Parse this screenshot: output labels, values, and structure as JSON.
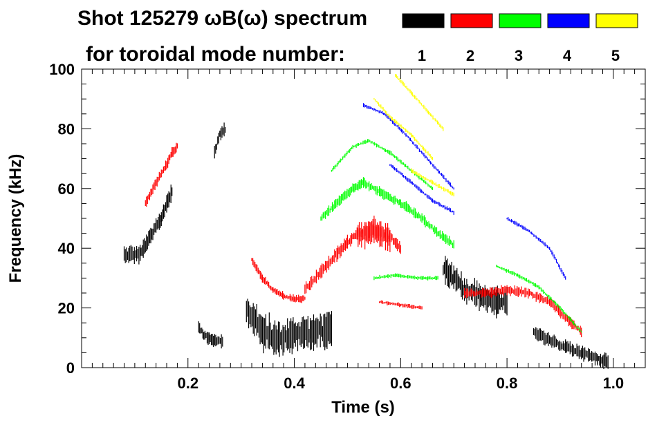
{
  "chart_data": {
    "type": "scatter",
    "title_line1": "Shot 125279 ωB(ω) spectrum",
    "title_line2": "for toroidal mode number:",
    "xlabel": "Time (s)",
    "ylabel": "Frequency (kHz)",
    "xlim": [
      0.0,
      1.06
    ],
    "ylim": [
      0,
      100
    ],
    "x_ticks": [
      0.2,
      0.4,
      0.6,
      0.8,
      1.0
    ],
    "x_tick_labels": [
      "0.2",
      "0.4",
      "0.6",
      "0.8",
      "1.0"
    ],
    "y_ticks": [
      0,
      20,
      40,
      60,
      80,
      100
    ],
    "y_tick_labels": [
      "0",
      "20",
      "40",
      "60",
      "80",
      "100"
    ],
    "legend": [
      {
        "label": "1",
        "color": "#000000"
      },
      {
        "label": "2",
        "color": "#ff0000"
      },
      {
        "label": "3",
        "color": "#00ff00"
      },
      {
        "label": "4",
        "color": "#0000ff"
      },
      {
        "label": "5",
        "color": "#ffff00"
      }
    ],
    "series": [
      {
        "name": "n=1",
        "color": "#000000",
        "bands": [
          {
            "x": [
              0.08,
              0.11,
              0.13,
              0.15,
              0.16,
              0.17
            ],
            "y": [
              38,
              38,
              44,
              50,
              55,
              59
            ],
            "w": 9
          },
          {
            "x": [
              0.22,
              0.23,
              0.24,
              0.25,
              0.265
            ],
            "y": [
              14,
              11,
              10,
              9,
              9
            ],
            "w": 7
          },
          {
            "x": [
              0.25,
              0.26,
              0.27
            ],
            "y": [
              72,
              78,
              80
            ],
            "w": 7
          },
          {
            "x": [
              0.31,
              0.34,
              0.37,
              0.4,
              0.43,
              0.47
            ],
            "y": [
              20,
              12,
              10,
              11,
              12,
              13
            ],
            "w": 18
          },
          {
            "x": [
              0.68,
              0.7,
              0.72,
              0.75,
              0.78,
              0.8
            ],
            "y": [
              33,
              30,
              26,
              24,
              22,
              22
            ],
            "w": 14
          },
          {
            "x": [
              0.85,
              0.88,
              0.91,
              0.94,
              0.97,
              0.99
            ],
            "y": [
              12,
              9,
              7,
              5,
              3,
              2
            ],
            "w": 7
          }
        ]
      },
      {
        "name": "n=2",
        "color": "#ff0000",
        "bands": [
          {
            "x": [
              0.12,
              0.14,
              0.16,
              0.17,
              0.18
            ],
            "y": [
              55,
              62,
              68,
              72,
              74
            ],
            "w": 5
          },
          {
            "x": [
              0.32,
              0.34,
              0.36,
              0.38,
              0.4,
              0.42
            ],
            "y": [
              36,
              30,
              26,
              24,
              23,
              23
            ],
            "w": 4
          },
          {
            "x": [
              0.42,
              0.45,
              0.48,
              0.5,
              0.52,
              0.55,
              0.58,
              0.6
            ],
            "y": [
              26,
              32,
              38,
              42,
              45,
              46,
              44,
              40
            ],
            "w": 7
          },
          {
            "x": [
              0.52,
              0.55,
              0.58
            ],
            "y": [
              44,
              46,
              43
            ],
            "w": 14
          },
          {
            "x": [
              0.72,
              0.76,
              0.8,
              0.84,
              0.88,
              0.92,
              0.94
            ],
            "y": [
              25,
              25,
              26,
              25,
              22,
              15,
              12
            ],
            "w": 5
          },
          {
            "x": [
              0.56,
              0.6,
              0.64
            ],
            "y": [
              22,
              21,
              20
            ],
            "w": 2
          }
        ]
      },
      {
        "name": "n=3",
        "color": "#00ff00",
        "bands": [
          {
            "x": [
              0.45,
              0.48,
              0.51,
              0.53,
              0.56,
              0.6,
              0.64,
              0.67,
              0.7
            ],
            "y": [
              50,
              55,
              60,
              62,
              59,
              55,
              50,
              45,
              41
            ],
            "w": 5
          },
          {
            "x": [
              0.47,
              0.51,
              0.54,
              0.58,
              0.62,
              0.66
            ],
            "y": [
              66,
              74,
              76,
              72,
              66,
              60
            ],
            "w": 2
          },
          {
            "x": [
              0.78,
              0.82,
              0.86,
              0.9,
              0.94
            ],
            "y": [
              34,
              31,
              27,
              20,
              12
            ],
            "w": 2
          },
          {
            "x": [
              0.55,
              0.59,
              0.63,
              0.67
            ],
            "y": [
              30,
              31,
              30,
              30
            ],
            "w": 2
          }
        ]
      },
      {
        "name": "n=4",
        "color": "#0000ff",
        "bands": [
          {
            "x": [
              0.53,
              0.57,
              0.61,
              0.65,
              0.7
            ],
            "y": [
              88,
              85,
              78,
              70,
              60
            ],
            "w": 2
          },
          {
            "x": [
              0.58,
              0.62,
              0.66,
              0.7
            ],
            "y": [
              68,
              62,
              56,
              52
            ],
            "w": 2
          },
          {
            "x": [
              0.8,
              0.84,
              0.88,
              0.91
            ],
            "y": [
              50,
              46,
              40,
              30
            ],
            "w": 2
          }
        ]
      },
      {
        "name": "n=5",
        "color": "#ffff00",
        "bands": [
          {
            "x": [
              0.59,
              0.62,
              0.65,
              0.68
            ],
            "y": [
              98,
              92,
              86,
              80
            ],
            "w": 2
          },
          {
            "x": [
              0.55,
              0.58,
              0.62,
              0.66
            ],
            "y": [
              90,
              84,
              78,
              70
            ],
            "w": 2
          },
          {
            "x": [
              0.62,
              0.66,
              0.7
            ],
            "y": [
              66,
              62,
              58
            ],
            "w": 2
          }
        ]
      }
    ]
  }
}
